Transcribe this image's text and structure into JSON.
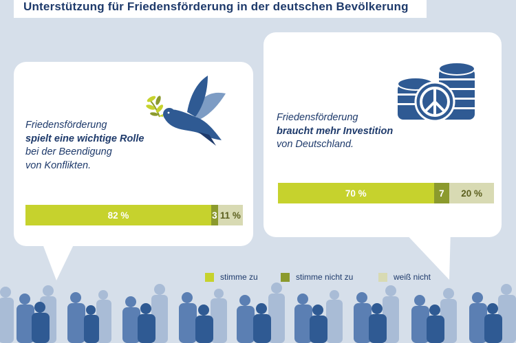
{
  "title": "Unterstützung für Friedensförderung in der deutschen Bevölkerung",
  "colors": {
    "agree": "#c6d22d",
    "disagree": "#8b9a2d",
    "unknown": "#d8dab3",
    "navy": "#1e3a6b",
    "background": "#d6dfea"
  },
  "left_statement": {
    "line1": "Friedensförderung",
    "line2": "spielt eine wichtige Rolle",
    "line3": "bei der Beendigung",
    "line4": "von Konflikten.",
    "icon": "dove-with-olive-branch-icon"
  },
  "right_statement": {
    "line1": "Friedensförderung",
    "line2": "braucht mehr Investition",
    "line3": "von Deutschland.",
    "icon": "coins-peace-sign-icon"
  },
  "legend": {
    "agree": "stimme zu",
    "disagree": "stimme nicht zu",
    "unknown": "weiß nicht"
  },
  "chart_data": [
    {
      "type": "bar",
      "orientation": "horizontal-stacked",
      "categories": [
        "stimme zu",
        "stimme nicht zu",
        "weiß nicht"
      ],
      "values": [
        82,
        3,
        11
      ],
      "labels": [
        "82 %",
        "3",
        "11 %"
      ]
    },
    {
      "type": "bar",
      "orientation": "horizontal-stacked",
      "categories": [
        "stimme zu",
        "stimme nicht zu",
        "weiß nicht"
      ],
      "values": [
        70,
        7,
        20
      ],
      "labels": [
        "70 %",
        "7",
        "20 %"
      ]
    }
  ]
}
